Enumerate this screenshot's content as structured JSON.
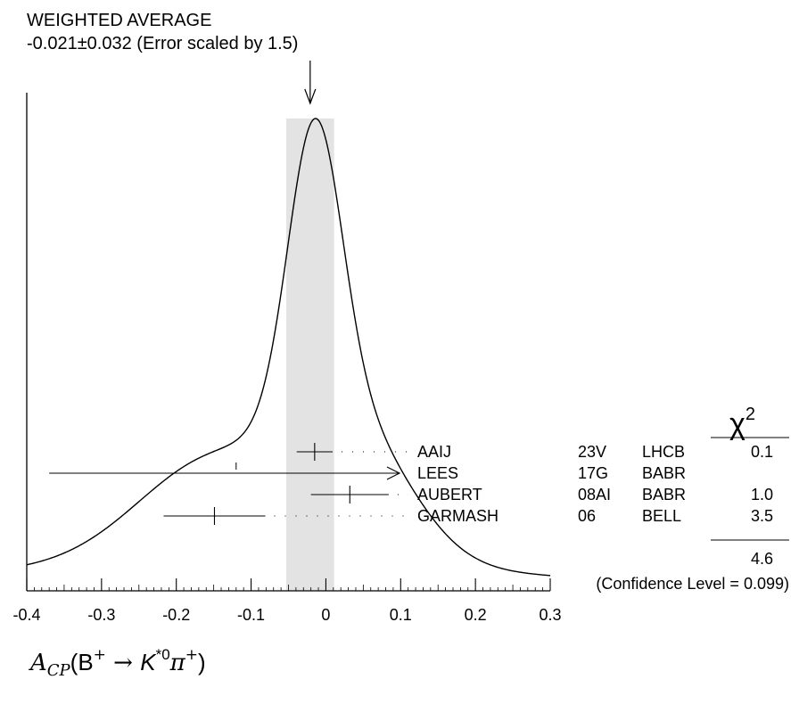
{
  "chart_data": {
    "type": "ideogram",
    "title": "WEIGHTED AVERAGE",
    "subtitle": "-0.021±0.032 (Error scaled by 1.5)",
    "average": {
      "value": -0.021,
      "error": 0.032
    },
    "xlabel_parts": {
      "a": "A",
      "cp": "CP",
      "open": "(B",
      "plus1": "+",
      "arrow": " → ",
      "k": "K",
      "kstar": "*0",
      "pi": "π",
      "plus2": "+",
      "close": ")"
    },
    "xlim": [
      -0.4,
      0.3
    ],
    "x_ticks": [
      "-0.4",
      "-0.3",
      "-0.2",
      "-0.1",
      "0",
      "0.1",
      "0.2",
      "0.3"
    ],
    "x_tick_values": [
      -0.4,
      -0.3,
      -0.2,
      -0.1,
      0,
      0.1,
      0.2,
      0.3
    ],
    "chi2_header": "χ",
    "chi2_sup": "2",
    "measurements": [
      {
        "author": "AAIJ",
        "code": "23V",
        "experiment": "LHCB",
        "value": -0.015,
        "err_low": 0.024,
        "err_high": 0.024,
        "chi2": "0.1",
        "arrow_left": false,
        "arrow_right": false
      },
      {
        "author": "LEES",
        "code": "17G",
        "experiment": "BABR",
        "value": -0.12,
        "err_low": 0.25,
        "err_high": 0.25,
        "chi2": "",
        "arrow_left": false,
        "arrow_right": true
      },
      {
        "author": "AUBERT",
        "code": "08AI",
        "experiment": "BABR",
        "value": 0.032,
        "err_low": 0.052,
        "err_high": 0.052,
        "chi2": "1.0",
        "arrow_left": false,
        "arrow_right": false
      },
      {
        "author": "GARMASH",
        "code": "06",
        "experiment": "BELL",
        "value": -0.149,
        "err_low": 0.068,
        "err_high": 0.068,
        "chi2": "3.5",
        "arrow_left": false,
        "arrow_right": false
      }
    ],
    "chi2_total": "4.6",
    "confidence_level": "(Confidence Level = 0.099)"
  }
}
